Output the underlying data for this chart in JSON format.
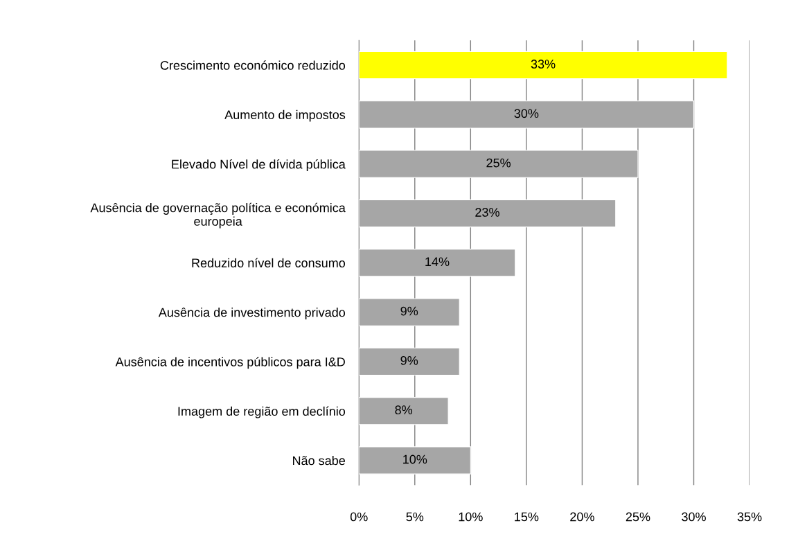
{
  "chart_data": {
    "type": "bar",
    "orientation": "horizontal",
    "categories": [
      "Crescimento económico reduzido",
      "Aumento de impostos",
      "Elevado Nível de dívida pública",
      "Ausência de governação política e económica\neuropeia",
      "Reduzido nível de consumo",
      "Ausência de investimento privado",
      "Ausência de incentivos públicos para I&D",
      "Imagem de região em declínio",
      "Não sabe"
    ],
    "values": [
      33,
      30,
      25,
      23,
      14,
      9,
      9,
      8,
      10
    ],
    "value_labels": [
      "33%",
      "30%",
      "25%",
      "23%",
      "14%",
      "9%",
      "9%",
      "8%",
      "10%"
    ],
    "colors": [
      "#ffff00",
      "#a6a6a6",
      "#a6a6a6",
      "#a6a6a6",
      "#a6a6a6",
      "#a6a6a6",
      "#a6a6a6",
      "#a6a6a6",
      "#a6a6a6"
    ],
    "xlim": [
      0,
      35
    ],
    "xticks": [
      {
        "value": 0,
        "label": "0%"
      },
      {
        "value": 5,
        "label": "5%"
      },
      {
        "value": 10,
        "label": "10%"
      },
      {
        "value": 15,
        "label": "15%"
      },
      {
        "value": 20,
        "label": "20%"
      },
      {
        "value": 25,
        "label": "25%"
      },
      {
        "value": 30,
        "label": "30%"
      },
      {
        "value": 35,
        "label": "35%"
      }
    ],
    "grid": "x",
    "legend": false
  }
}
